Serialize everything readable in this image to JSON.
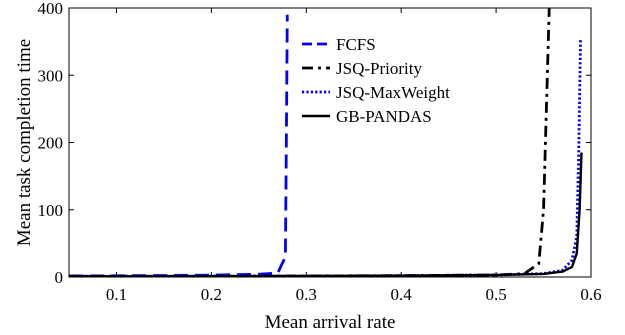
{
  "chart_data": {
    "type": "line",
    "xlabel": "Mean arrival rate",
    "ylabel": "Mean task completion time",
    "xlim": [
      0.05,
      0.6
    ],
    "ylim": [
      0,
      400
    ],
    "xticks": [
      0.1,
      0.2,
      0.3,
      0.4,
      0.5,
      0.6
    ],
    "yticks": [
      0,
      100,
      200,
      300,
      400
    ],
    "xtick_labels": [
      "0.1",
      "0.2",
      "0.3",
      "0.4",
      "0.5",
      "0.6"
    ],
    "ytick_labels": [
      "0",
      "100",
      "200",
      "300",
      "400"
    ],
    "grid": false,
    "legend_position": "top-center",
    "series": [
      {
        "name": "FCFS",
        "color": "#0000ff",
        "style": "dashed",
        "x": [
          0.05,
          0.1,
          0.15,
          0.2,
          0.25,
          0.27,
          0.278,
          0.279,
          0.28
        ],
        "y": [
          1.5,
          1.8,
          2.2,
          2.8,
          4.0,
          6.0,
          30,
          200,
          390
        ]
      },
      {
        "name": "JSQ-Priority",
        "color": "#000000",
        "style": "dashdot",
        "x": [
          0.05,
          0.1,
          0.2,
          0.3,
          0.4,
          0.5,
          0.53,
          0.545,
          0.55,
          0.553,
          0.556
        ],
        "y": [
          1.0,
          1.0,
          1.2,
          1.5,
          2.0,
          3.0,
          5.0,
          20,
          100,
          250,
          400
        ]
      },
      {
        "name": "JSQ-MaxWeight",
        "color": "#0000ff",
        "style": "dotted",
        "x": [
          0.05,
          0.1,
          0.2,
          0.3,
          0.4,
          0.5,
          0.55,
          0.57,
          0.58,
          0.585,
          0.587,
          0.589
        ],
        "y": [
          1.0,
          1.0,
          1.2,
          1.5,
          2.0,
          3.0,
          5.0,
          10,
          25,
          60,
          180,
          355
        ]
      },
      {
        "name": "GB-PANDAS",
        "color": "#000000",
        "style": "solid",
        "x": [
          0.05,
          0.1,
          0.2,
          0.3,
          0.4,
          0.5,
          0.55,
          0.57,
          0.58,
          0.585,
          0.588,
          0.59
        ],
        "y": [
          1.0,
          1.0,
          1.2,
          1.5,
          2.0,
          3.0,
          4.5,
          8.0,
          15,
          35,
          100,
          185
        ]
      }
    ]
  }
}
